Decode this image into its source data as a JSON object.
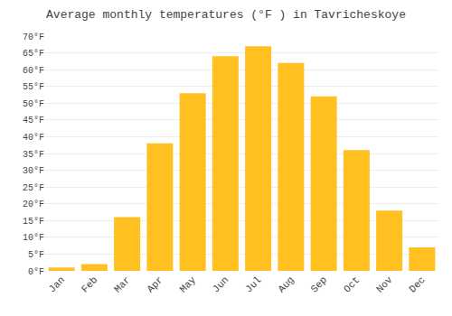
{
  "chart_data": {
    "type": "bar",
    "title": "Average monthly temperatures (°F ) in Tavricheskoye",
    "categories": [
      "Jan",
      "Feb",
      "Mar",
      "Apr",
      "May",
      "Jun",
      "Jul",
      "Aug",
      "Sep",
      "Oct",
      "Nov",
      "Dec"
    ],
    "values": [
      1,
      2,
      16,
      38,
      53,
      64,
      67,
      62,
      52,
      36,
      18,
      7
    ],
    "color": "#FFC020",
    "ylim": [
      0,
      70
    ],
    "yticks": [
      {
        "value": 0,
        "label": "0°F"
      },
      {
        "value": 5,
        "label": "5°F"
      },
      {
        "value": 10,
        "label": "10°F"
      },
      {
        "value": 15,
        "label": "15°F"
      },
      {
        "value": 20,
        "label": "20°F"
      },
      {
        "value": 25,
        "label": "25°F"
      },
      {
        "value": 30,
        "label": "30°F"
      },
      {
        "value": 35,
        "label": "35°F"
      },
      {
        "value": 40,
        "label": "40°F"
      },
      {
        "value": 45,
        "label": "45°F"
      },
      {
        "value": 50,
        "label": "50°F"
      },
      {
        "value": 55,
        "label": "55°F"
      },
      {
        "value": 60,
        "label": "60°F"
      },
      {
        "value": 65,
        "label": "65°F"
      },
      {
        "value": 70,
        "label": "70°F"
      }
    ],
    "grid": true
  }
}
